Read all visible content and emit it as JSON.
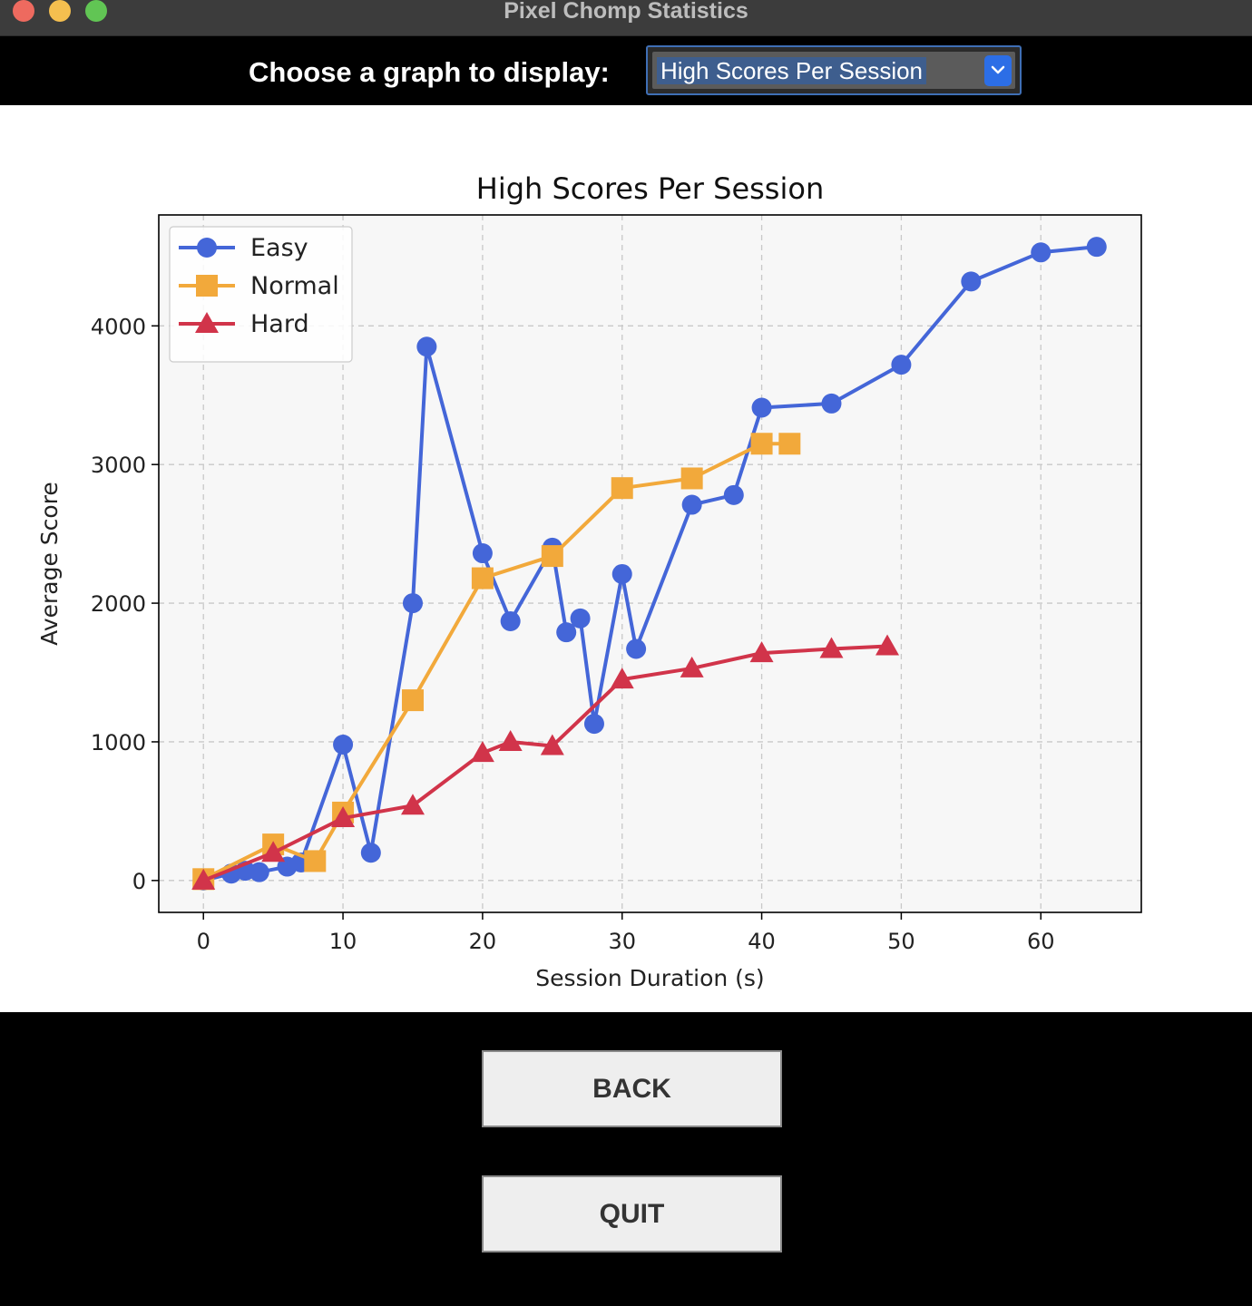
{
  "window": {
    "title": "Pixel Chomp Statistics"
  },
  "controls": {
    "choose_label": "Choose a graph to display:",
    "selected_graph": "High Scores Per Session"
  },
  "buttons": {
    "back": "BACK",
    "quit": "QUIT"
  },
  "colors": {
    "easy": "#4466d8",
    "normal": "#f2a93b",
    "hard": "#d1344a",
    "plot_background": "#f7f7f7",
    "select_accent": "#2c6ee6"
  },
  "chart_data": {
    "type": "line",
    "title": "High Scores Per Session",
    "xlabel": "Session Duration (s)",
    "ylabel": "Average Score",
    "xlim": [
      -3.2,
      67.2
    ],
    "ylim": [
      -230,
      4800
    ],
    "xticks": [
      0,
      10,
      20,
      30,
      40,
      50,
      60
    ],
    "yticks": [
      0,
      1000,
      2000,
      3000,
      4000
    ],
    "grid": true,
    "legend_position": "top-left",
    "series": [
      {
        "name": "Easy",
        "marker": "circle",
        "x": [
          0,
          2,
          3,
          4,
          6,
          7,
          10,
          12,
          15,
          16,
          20,
          22,
          25,
          26,
          27,
          28,
          30,
          31,
          35,
          38,
          40,
          45,
          50,
          55,
          60,
          64
        ],
        "y": [
          0,
          50,
          70,
          60,
          100,
          130,
          980,
          200,
          2000,
          3850,
          2360,
          1870,
          2400,
          1790,
          1890,
          1130,
          2210,
          1670,
          2710,
          2780,
          3410,
          3440,
          3720,
          4320,
          4530,
          4570
        ]
      },
      {
        "name": "Normal",
        "marker": "square",
        "x": [
          0,
          5,
          8,
          10,
          15,
          20,
          25,
          30,
          35,
          40,
          42
        ],
        "y": [
          10,
          260,
          140,
          490,
          1300,
          2180,
          2340,
          2830,
          2900,
          3150,
          3150
        ]
      },
      {
        "name": "Hard",
        "marker": "triangle",
        "x": [
          0,
          5,
          10,
          15,
          20,
          22,
          25,
          30,
          35,
          40,
          45,
          49
        ],
        "y": [
          0,
          200,
          450,
          540,
          920,
          1000,
          970,
          1450,
          1530,
          1640,
          1670,
          1690
        ]
      }
    ]
  }
}
